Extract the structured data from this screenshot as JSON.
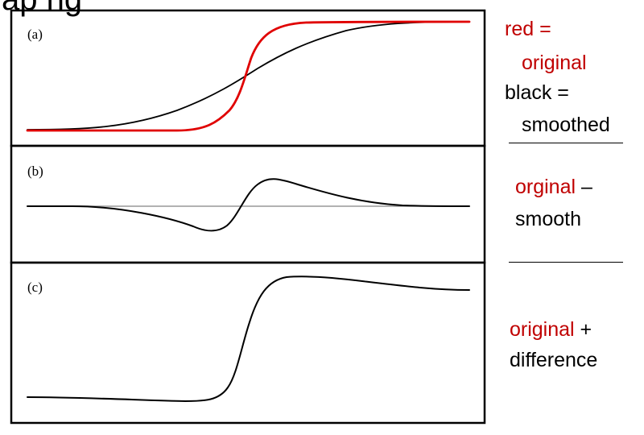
{
  "header": {
    "title_fragment": "ap    ng"
  },
  "panels": {
    "a": {
      "label": "(a)"
    },
    "b": {
      "label": "(b)"
    },
    "c": {
      "label": "(c)"
    }
  },
  "colors": {
    "original": "#e00000",
    "smoothed": "#000000",
    "baseline": "#999999",
    "annotation_red": "#c00000"
  },
  "legend": {
    "a": {
      "red_word": "red =",
      "original_word": "original",
      "black_word": "black =",
      "smoothed_word": "smoothed"
    },
    "b": {
      "original_word": "orginal",
      "op": " –",
      "smooth_word": "smooth"
    },
    "c": {
      "original_word": "original",
      "op": " +",
      "difference_word": "difference"
    }
  }
}
